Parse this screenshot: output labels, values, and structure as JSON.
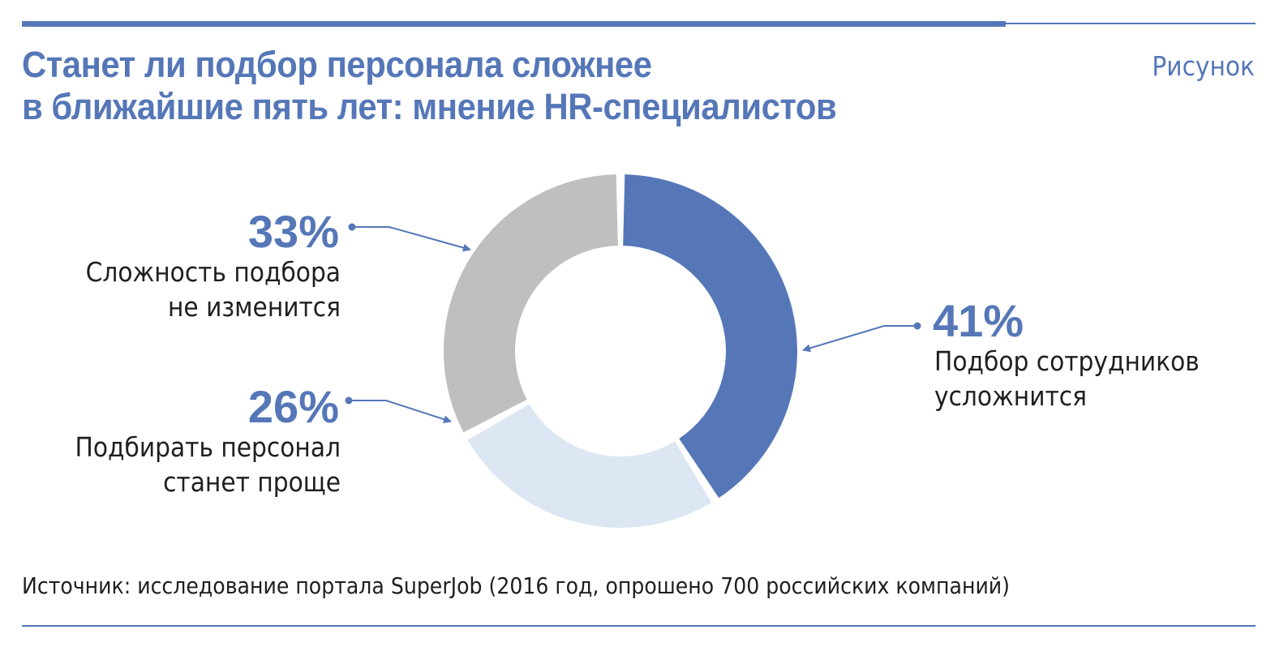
{
  "header": {
    "title_line1": "Станет ли подбор персонала сложнее",
    "title_line2": "в ближайшие пять лет: мнение HR-специалистов",
    "figure_label": "Рисунок"
  },
  "colors": {
    "accent": "#5577b8",
    "slice_harder": "#5577b8",
    "slice_same": "#bfbfbf",
    "slice_easier": "#dce7f3"
  },
  "chart_data": {
    "type": "pie",
    "donut": true,
    "slices": [
      {
        "label_line1": "Подбор сотрудников",
        "label_line2": "усложнится",
        "value": 41,
        "value_label": "41%",
        "color": "#5577b8"
      },
      {
        "label_line1": "Подбирать персонал",
        "label_line2": "станет проще",
        "value": 26,
        "value_label": "26%",
        "color": "#dce7f3"
      },
      {
        "label_line1": "Сложность подбора",
        "label_line2": "не изменится",
        "value": 33,
        "value_label": "33%",
        "color": "#bfbfbf"
      }
    ]
  },
  "footer": {
    "source": "Источник: исследование портала SuperJob (2016 год, опрошено 700 российских компаний)"
  }
}
